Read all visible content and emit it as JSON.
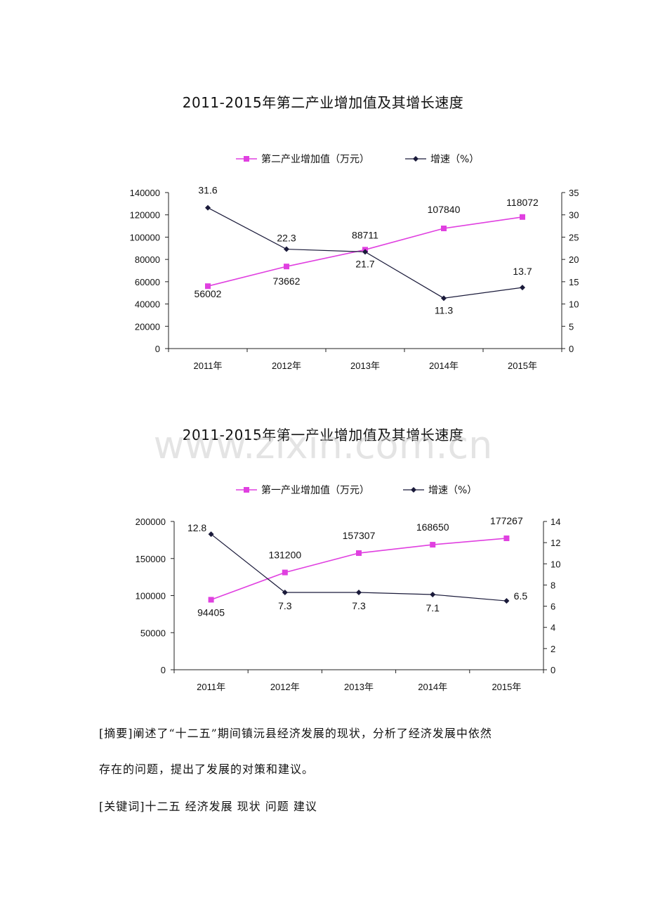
{
  "chart_data": [
    {
      "type": "line",
      "title": "2011-2015年第二产业增加值及其增长速度",
      "categories": [
        "2011年",
        "2012年",
        "2013年",
        "2014年",
        "2015年"
      ],
      "series": [
        {
          "name": "第二产业增加值（万元）",
          "values": [
            56002,
            73662,
            88711,
            107840,
            118072
          ],
          "axis": "left",
          "color": "#e040e0",
          "marker": "square"
        },
        {
          "name": "增速（%）",
          "values": [
            31.6,
            22.3,
            21.7,
            11.3,
            13.7
          ],
          "axis": "right",
          "color": "#1a1a3a",
          "marker": "diamond"
        }
      ],
      "ylim_left": [
        0,
        140000
      ],
      "yticks_left": [
        "0",
        "20000",
        "40000",
        "60000",
        "80000",
        "100000",
        "120000",
        "140000"
      ],
      "ylim_right": [
        0,
        35
      ],
      "yticks_right": [
        "0",
        "5",
        "10",
        "15",
        "20",
        "25",
        "30",
        "35"
      ],
      "data_labels_left": [
        "56002",
        "73662",
        "88711",
        "107840",
        "118072"
      ],
      "data_labels_right": [
        "31.6",
        "22.3",
        "21.7",
        "11.3",
        "13.7"
      ],
      "legend_position": "top",
      "grid": false
    },
    {
      "type": "line",
      "title": "2011-2015年第一产业增加值及其增长速度",
      "categories": [
        "2011年",
        "2012年",
        "2013年",
        "2014年",
        "2015年"
      ],
      "series": [
        {
          "name": "第一产业增加值（万元）",
          "values": [
            94405,
            131200,
            157307,
            168650,
            177267
          ],
          "axis": "left",
          "color": "#e040e0",
          "marker": "square"
        },
        {
          "name": "增速（%）",
          "values": [
            12.8,
            7.3,
            7.3,
            7.1,
            6.5
          ],
          "axis": "right",
          "color": "#1a1a3a",
          "marker": "diamond"
        }
      ],
      "ylim_left": [
        0,
        200000
      ],
      "yticks_left": [
        "0",
        "50000",
        "100000",
        "150000",
        "200000"
      ],
      "ylim_right": [
        0,
        14
      ],
      "yticks_right": [
        "0",
        "2",
        "4",
        "6",
        "8",
        "10",
        "12",
        "14"
      ],
      "data_labels_left": [
        "94405",
        "131200",
        "157307",
        "168650",
        "177267"
      ],
      "data_labels_right": [
        "12.8",
        "7.3",
        "7.3",
        "7.1",
        "6.5"
      ],
      "legend_position": "top",
      "grid": false
    }
  ],
  "watermark": "www.zixin.com.cn",
  "text": {
    "abstract_line1": "[摘要]阐述了“十二五”期间镇沅县经济发展的现状，分析了经济发展中依然",
    "abstract_line2": "存在的问题，提出了发展的对策和建议。",
    "keywords": "[关键词]十二五 经济发展 现状 问题 建议"
  }
}
